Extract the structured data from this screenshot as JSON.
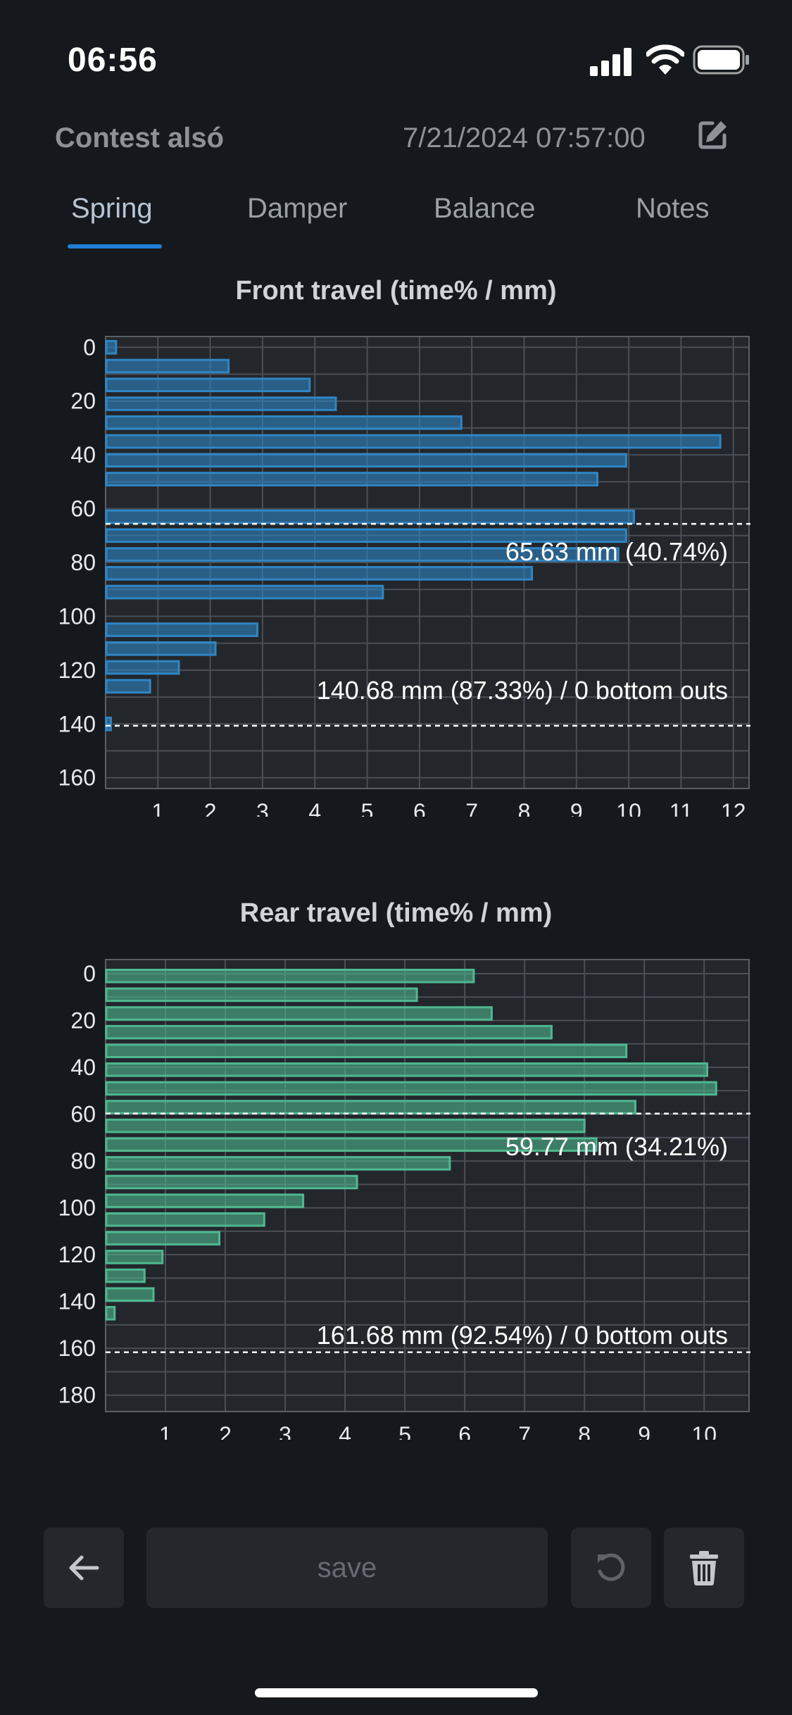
{
  "status_bar": {
    "time": "06:56"
  },
  "header": {
    "session_name": "Contest alsó",
    "date": "7/21/2024 07:57:00"
  },
  "tabs": [
    {
      "label": "Spring",
      "active": true
    },
    {
      "label": "Damper",
      "active": false
    },
    {
      "label": "Balance",
      "active": false
    },
    {
      "label": "Notes",
      "active": false
    }
  ],
  "chart_data": [
    {
      "type": "bar",
      "orientation": "horizontal",
      "title": "Front travel (time% / mm)",
      "color": "#2f86c5",
      "y": [
        0,
        7,
        14,
        21,
        28,
        35,
        42,
        49,
        56,
        63,
        70,
        77,
        84,
        91,
        98,
        105,
        112,
        119,
        126,
        133,
        140
      ],
      "values": [
        0.2,
        2.35,
        3.9,
        4.4,
        6.8,
        11.75,
        9.95,
        9.4,
        0,
        10.1,
        9.95,
        9.8,
        8.15,
        5.3,
        0,
        2.9,
        2.1,
        1.4,
        0.85,
        0,
        0.1
      ],
      "ylim": [
        -4,
        164
      ],
      "xlim": [
        0,
        12.3
      ],
      "yticks": [
        "0",
        "20",
        "40",
        "60",
        "80",
        "100",
        "120",
        "140",
        "160"
      ],
      "xticks": [
        "1",
        "2",
        "3",
        "4",
        "5",
        "6",
        "7",
        "8",
        "9",
        "10",
        "11",
        "12"
      ],
      "reference_lines": [
        65.63,
        140.68
      ],
      "annotations": [
        "65.63 mm (40.74%)",
        "140.68 mm (87.33%) / 0 bottom outs"
      ]
    },
    {
      "type": "bar",
      "orientation": "horizontal",
      "title": "Rear travel (time% / mm)",
      "color": "#4fb890",
      "y": [
        1,
        9,
        17,
        25,
        33,
        41,
        49,
        57,
        65,
        73,
        81,
        89,
        97,
        105,
        113,
        121,
        129,
        137,
        145,
        153,
        161
      ],
      "values": [
        6.15,
        5.2,
        6.45,
        7.45,
        8.7,
        10.05,
        10.2,
        8.85,
        8.0,
        8.2,
        5.75,
        4.2,
        3.3,
        2.65,
        1.9,
        0.95,
        0.65,
        0.8,
        0.15,
        0,
        0
      ],
      "ylim": [
        -6,
        187
      ],
      "xlim": [
        0,
        10.75
      ],
      "yticks": [
        "0",
        "20",
        "40",
        "60",
        "80",
        "100",
        "120",
        "140",
        "160",
        "180"
      ],
      "xticks": [
        "1",
        "2",
        "3",
        "4",
        "5",
        "6",
        "7",
        "8",
        "9",
        "10"
      ],
      "reference_lines": [
        59.77,
        161.68
      ],
      "annotations": [
        "59.77 mm (34.21%)",
        "161.68 mm (92.54%) / 0 bottom outs"
      ]
    }
  ],
  "toolbar": {
    "back_icon": "arrow-left-icon",
    "save_label": "save",
    "reset_icon": "undo-icon",
    "delete_icon": "trash-icon"
  }
}
